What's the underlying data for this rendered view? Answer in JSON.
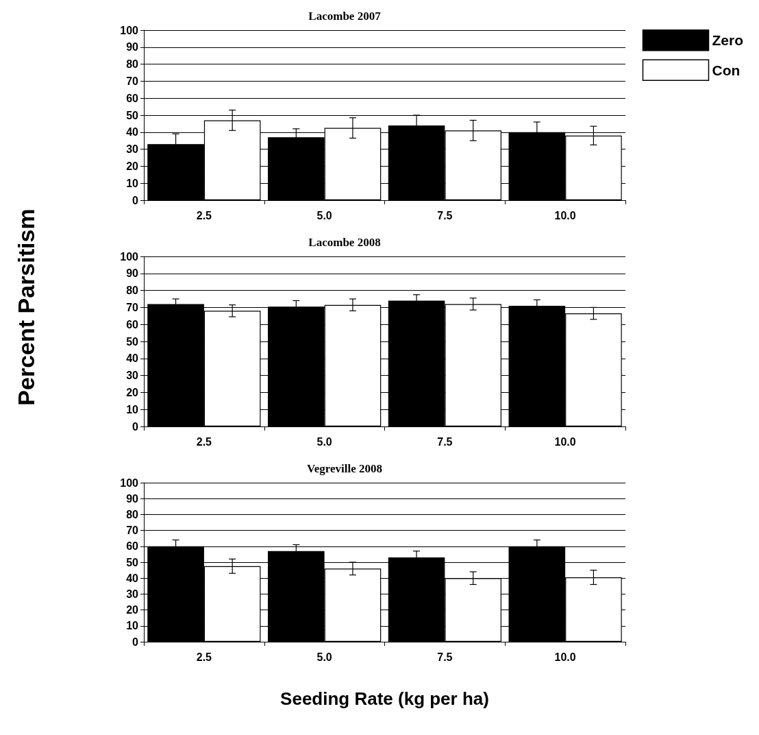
{
  "chart_data": [
    {
      "type": "bar",
      "title": "Lacombe 2007",
      "categories": [
        "2.5",
        "5.0",
        "7.5",
        "10.0"
      ],
      "series": [
        {
          "name": "Zero",
          "color": "#000000",
          "values": [
            33,
            37,
            44,
            40
          ],
          "errors": [
            6,
            5,
            6,
            6
          ]
        },
        {
          "name": "Con",
          "color": "#ffffff",
          "values": [
            47,
            42.5,
            41,
            38
          ],
          "errors": [
            6,
            6,
            6,
            5.5
          ]
        }
      ],
      "ylim": [
        0,
        100
      ],
      "yticks": [
        0,
        10,
        20,
        30,
        40,
        50,
        60,
        70,
        80,
        90,
        100
      ],
      "grid": "y",
      "legend": "top right"
    },
    {
      "type": "bar",
      "title": "Lacombe 2008",
      "ylabel": "Percent Parsitism",
      "categories": [
        "2.5",
        "5.0",
        "7.5",
        "10.0"
      ],
      "series": [
        {
          "color": "#000000",
          "values": [
            72,
            70.5,
            74,
            71
          ],
          "errors": [
            3,
            3.5,
            3.5,
            3.5
          ]
        },
        {
          "color": "#ffffff",
          "values": [
            68,
            71.5,
            72,
            66.5
          ],
          "errors": [
            3.5,
            3.5,
            3.5,
            3.5
          ]
        }
      ],
      "ylim": [
        0,
        100
      ],
      "yticks": [
        0,
        10,
        20,
        30,
        40,
        50,
        60,
        70,
        80,
        90,
        100
      ],
      "grid": "y"
    },
    {
      "type": "bar",
      "title": "Vegreville 2008",
      "xlabel": "Seeding Rate (kg per ha)",
      "categories": [
        "2.5",
        "5.0",
        "7.5",
        "10.0"
      ],
      "series": [
        {
          "color": "#000000",
          "values": [
            60,
            57,
            53,
            60
          ],
          "errors": [
            4,
            4,
            4,
            4
          ]
        },
        {
          "color": "#ffffff",
          "values": [
            47.5,
            46,
            40,
            40.5
          ],
          "errors": [
            4.5,
            4,
            4,
            4.5
          ]
        }
      ],
      "ylim": [
        0,
        100
      ],
      "yticks": [
        0,
        10,
        20,
        30,
        40,
        50,
        60,
        70,
        80,
        90,
        100
      ],
      "grid": "y"
    }
  ]
}
